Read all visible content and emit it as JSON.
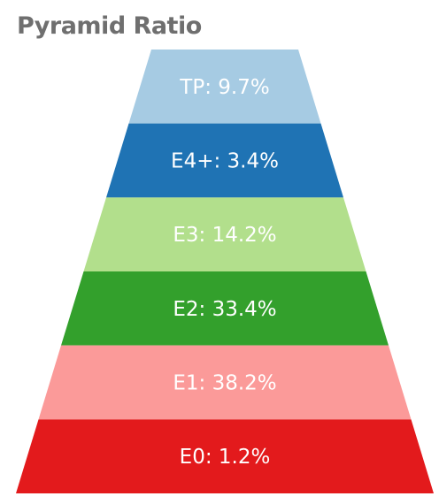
{
  "chart_data": {
    "type": "funnel",
    "title": "Pyramid Ratio",
    "segments": [
      {
        "key": "TP",
        "label": "TP: 9.7%",
        "value": 9.7,
        "color": "#a6cbe3"
      },
      {
        "key": "E4+",
        "label": "E4+: 3.4%",
        "value": 3.4,
        "color": "#1f73b4"
      },
      {
        "key": "E3",
        "label": "E3: 14.2%",
        "value": 14.2,
        "color": "#b2df8c"
      },
      {
        "key": "E2",
        "label": "E2: 33.4%",
        "value": 33.4,
        "color": "#33a02c"
      },
      {
        "key": "E1",
        "label": "E1: 38.2%",
        "value": 38.2,
        "color": "#fb9a99"
      },
      {
        "key": "E0",
        "label": "E0: 1.2%",
        "value": 1.2,
        "color": "#e31a1c"
      }
    ]
  }
}
